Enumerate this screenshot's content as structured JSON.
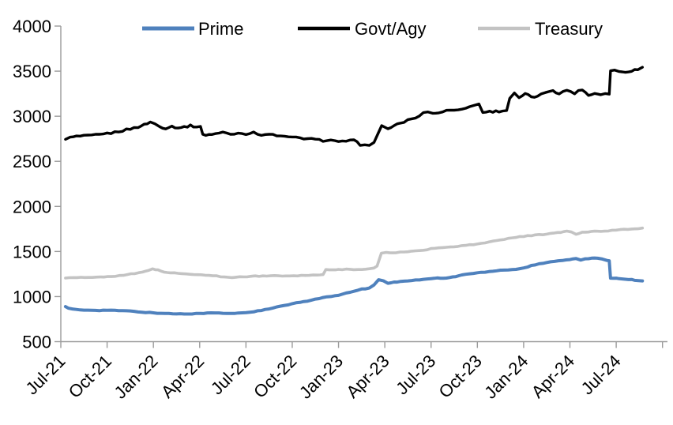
{
  "legend": {
    "items": [
      {
        "label": "Prime",
        "color": "#4F81BD"
      },
      {
        "label": "Govt/Agy",
        "color": "#000000"
      },
      {
        "label": "Treasury",
        "color": "#C3C3C3"
      }
    ]
  },
  "chart_data": {
    "type": "line",
    "title": "",
    "xlabel": "",
    "ylabel": "",
    "legend_position": "top",
    "grid": false,
    "x_axis": {
      "tick_labels": [
        "Jul-21",
        "Oct-21",
        "Jan-22",
        "Apr-22",
        "Jul-22",
        "Oct-22",
        "Jan-23",
        "Apr-23",
        "Jul-23",
        "Oct-23",
        "Jan-24",
        "Apr-24",
        "Jul-24"
      ],
      "months_per_tick": 3,
      "total_ticks": 14,
      "domain_months": [
        0,
        39.3
      ]
    },
    "y_axis": {
      "min": 500,
      "max": 4000,
      "tick_step": 500,
      "tick_labels": [
        "500",
        "1000",
        "1500",
        "2000",
        "2500",
        "3000",
        "3500",
        "4000"
      ]
    },
    "series": [
      {
        "name": "Prime",
        "color": "#4F81BD",
        "points": [
          [
            0.3,
            890
          ],
          [
            0.5,
            868
          ],
          [
            1,
            855
          ],
          [
            1.5,
            849
          ],
          [
            2,
            851
          ],
          [
            2.5,
            847
          ],
          [
            3,
            849
          ],
          [
            3.5,
            846
          ],
          [
            4,
            843
          ],
          [
            4.5,
            839
          ],
          [
            5,
            831
          ],
          [
            5.5,
            825
          ],
          [
            6,
            819
          ],
          [
            6.5,
            815
          ],
          [
            7,
            811
          ],
          [
            7.5,
            809
          ],
          [
            8,
            808
          ],
          [
            8.5,
            810
          ],
          [
            9,
            813
          ],
          [
            9.5,
            817
          ],
          [
            10,
            819
          ],
          [
            10.5,
            815
          ],
          [
            11,
            811
          ],
          [
            11.5,
            816
          ],
          [
            12,
            823
          ],
          [
            12.5,
            833
          ],
          [
            13,
            847
          ],
          [
            13.5,
            863
          ],
          [
            14,
            883
          ],
          [
            14.5,
            901
          ],
          [
            15,
            919
          ],
          [
            15.5,
            936
          ],
          [
            16,
            953
          ],
          [
            16.5,
            971
          ],
          [
            17,
            989
          ],
          [
            17.5,
            1001
          ],
          [
            18,
            1013
          ],
          [
            18.5,
            1036
          ],
          [
            19,
            1061
          ],
          [
            19.5,
            1081
          ],
          [
            20,
            1096
          ],
          [
            20.3,
            1131
          ],
          [
            20.6,
            1186
          ],
          [
            20.9,
            1176
          ],
          [
            21.2,
            1149
          ],
          [
            21.6,
            1159
          ],
          [
            22,
            1169
          ],
          [
            22.5,
            1176
          ],
          [
            23,
            1183
          ],
          [
            23.5,
            1191
          ],
          [
            24,
            1198
          ],
          [
            24.4,
            1208
          ],
          [
            24.8,
            1201
          ],
          [
            25.2,
            1211
          ],
          [
            25.6,
            1223
          ],
          [
            26,
            1241
          ],
          [
            26.5,
            1253
          ],
          [
            27,
            1263
          ],
          [
            27.5,
            1273
          ],
          [
            28,
            1283
          ],
          [
            28.5,
            1293
          ],
          [
            29,
            1298
          ],
          [
            29.5,
            1303
          ],
          [
            30,
            1316
          ],
          [
            30.5,
            1343
          ],
          [
            31,
            1361
          ],
          [
            31.5,
            1376
          ],
          [
            32,
            1391
          ],
          [
            32.5,
            1403
          ],
          [
            33,
            1413
          ],
          [
            33.4,
            1419
          ],
          [
            33.7,
            1406
          ],
          [
            34,
            1418
          ],
          [
            34.4,
            1423
          ],
          [
            34.8,
            1426
          ],
          [
            35.1,
            1419
          ],
          [
            35.4,
            1403
          ],
          [
            35.55,
            1399
          ],
          [
            35.63,
            1206
          ],
          [
            36,
            1203
          ],
          [
            36.4,
            1199
          ],
          [
            36.8,
            1191
          ],
          [
            37.2,
            1183
          ],
          [
            37.7,
            1173
          ]
        ]
      },
      {
        "name": "Govt/Agy",
        "color": "#000000",
        "points": [
          [
            0.3,
            2752
          ],
          [
            0.6,
            2762
          ],
          [
            1,
            2776
          ],
          [
            1.5,
            2780
          ],
          [
            2,
            2786
          ],
          [
            2.5,
            2795
          ],
          [
            3,
            2806
          ],
          [
            3.5,
            2822
          ],
          [
            4,
            2841
          ],
          [
            4.5,
            2860
          ],
          [
            5,
            2881
          ],
          [
            5.4,
            2905
          ],
          [
            5.8,
            2936
          ],
          [
            6.1,
            2915
          ],
          [
            6.4,
            2885
          ],
          [
            6.8,
            2868
          ],
          [
            7.2,
            2888
          ],
          [
            7.6,
            2872
          ],
          [
            8,
            2882
          ],
          [
            8.4,
            2894
          ],
          [
            8.8,
            2884
          ],
          [
            9.05,
            2880
          ],
          [
            9.2,
            2792
          ],
          [
            9.6,
            2797
          ],
          [
            10,
            2806
          ],
          [
            10.5,
            2821
          ],
          [
            11,
            2801
          ],
          [
            11.5,
            2811
          ],
          [
            12,
            2806
          ],
          [
            12.5,
            2816
          ],
          [
            13,
            2796
          ],
          [
            13.5,
            2801
          ],
          [
            14,
            2781
          ],
          [
            14.5,
            2772
          ],
          [
            15,
            2766
          ],
          [
            15.5,
            2758
          ],
          [
            16,
            2751
          ],
          [
            16.5,
            2741
          ],
          [
            17,
            2731
          ],
          [
            17.5,
            2741
          ],
          [
            18,
            2711
          ],
          [
            18.5,
            2726
          ],
          [
            19,
            2731
          ],
          [
            19.4,
            2686
          ],
          [
            19.7,
            2692
          ],
          [
            20,
            2671
          ],
          [
            20.3,
            2706
          ],
          [
            20.6,
            2831
          ],
          [
            20.8,
            2891
          ],
          [
            21.2,
            2866
          ],
          [
            21.6,
            2891
          ],
          [
            22,
            2921
          ],
          [
            22.5,
            2956
          ],
          [
            23,
            2986
          ],
          [
            23.5,
            3036
          ],
          [
            23.8,
            3056
          ],
          [
            24.1,
            3031
          ],
          [
            24.5,
            3041
          ],
          [
            25,
            3061
          ],
          [
            25.5,
            3071
          ],
          [
            26,
            3086
          ],
          [
            26.5,
            3106
          ],
          [
            27.1,
            3136
          ],
          [
            27.35,
            3046
          ],
          [
            27.8,
            3051
          ],
          [
            28.4,
            3056
          ],
          [
            28.9,
            3066
          ],
          [
            29.1,
            3201
          ],
          [
            29.4,
            3251
          ],
          [
            29.7,
            3206
          ],
          [
            30.1,
            3246
          ],
          [
            30.5,
            3216
          ],
          [
            30.9,
            3216
          ],
          [
            31.4,
            3266
          ],
          [
            31.9,
            3291
          ],
          [
            32.3,
            3246
          ],
          [
            32.8,
            3291
          ],
          [
            33.3,
            3256
          ],
          [
            33.8,
            3301
          ],
          [
            34.2,
            3231
          ],
          [
            34.6,
            3256
          ],
          [
            35,
            3241
          ],
          [
            35.3,
            3261
          ],
          [
            35.55,
            3241
          ],
          [
            35.63,
            3501
          ],
          [
            35.9,
            3516
          ],
          [
            36.2,
            3491
          ],
          [
            36.6,
            3496
          ],
          [
            37,
            3506
          ],
          [
            37.4,
            3521
          ],
          [
            37.7,
            3541
          ]
        ]
      },
      {
        "name": "Treasury",
        "color": "#C3C3C3",
        "points": [
          [
            0.3,
            1205
          ],
          [
            0.8,
            1209
          ],
          [
            1.3,
            1211
          ],
          [
            1.8,
            1210
          ],
          [
            2.3,
            1213
          ],
          [
            2.8,
            1217
          ],
          [
            3.3,
            1224
          ],
          [
            3.8,
            1233
          ],
          [
            4.3,
            1244
          ],
          [
            4.8,
            1255
          ],
          [
            5.3,
            1270
          ],
          [
            5.7,
            1292
          ],
          [
            5.95,
            1309
          ],
          [
            6.3,
            1294
          ],
          [
            6.7,
            1272
          ],
          [
            7.1,
            1264
          ],
          [
            7.6,
            1257
          ],
          [
            8.1,
            1251
          ],
          [
            8.6,
            1247
          ],
          [
            9.1,
            1242
          ],
          [
            9.6,
            1234
          ],
          [
            10.1,
            1227
          ],
          [
            10.6,
            1219
          ],
          [
            11.1,
            1214
          ],
          [
            11.6,
            1218
          ],
          [
            12.1,
            1222
          ],
          [
            12.6,
            1226
          ],
          [
            13.1,
            1229
          ],
          [
            13.6,
            1232
          ],
          [
            14.1,
            1230
          ],
          [
            14.6,
            1228
          ],
          [
            15.1,
            1231
          ],
          [
            15.6,
            1234
          ],
          [
            16.1,
            1237
          ],
          [
            16.6,
            1240
          ],
          [
            17,
            1244
          ],
          [
            17.18,
            1298
          ],
          [
            17.6,
            1301
          ],
          [
            18,
            1298
          ],
          [
            18.5,
            1302
          ],
          [
            19,
            1300
          ],
          [
            19.5,
            1303
          ],
          [
            20,
            1307
          ],
          [
            20.3,
            1313
          ],
          [
            20.5,
            1340
          ],
          [
            20.78,
            1481
          ],
          [
            21.1,
            1491
          ],
          [
            21.5,
            1486
          ],
          [
            22,
            1493
          ],
          [
            22.5,
            1501
          ],
          [
            23,
            1509
          ],
          [
            23.5,
            1516
          ],
          [
            24,
            1529
          ],
          [
            24.5,
            1539
          ],
          [
            25,
            1549
          ],
          [
            25.5,
            1556
          ],
          [
            26,
            1563
          ],
          [
            26.5,
            1573
          ],
          [
            27,
            1583
          ],
          [
            27.5,
            1596
          ],
          [
            28,
            1613
          ],
          [
            28.5,
            1629
          ],
          [
            29,
            1643
          ],
          [
            29.5,
            1656
          ],
          [
            30,
            1669
          ],
          [
            30.5,
            1677
          ],
          [
            31,
            1685
          ],
          [
            31.5,
            1693
          ],
          [
            32,
            1703
          ],
          [
            32.4,
            1713
          ],
          [
            32.8,
            1727
          ],
          [
            33.1,
            1716
          ],
          [
            33.4,
            1693
          ],
          [
            33.8,
            1713
          ],
          [
            34.2,
            1719
          ],
          [
            34.6,
            1723
          ],
          [
            35,
            1727
          ],
          [
            35.5,
            1731
          ],
          [
            36,
            1737
          ],
          [
            36.5,
            1743
          ],
          [
            37,
            1749
          ],
          [
            37.4,
            1755
          ],
          [
            37.7,
            1761
          ]
        ]
      }
    ],
    "axis_color": "#9b9b9b",
    "text_color": "#000000"
  }
}
